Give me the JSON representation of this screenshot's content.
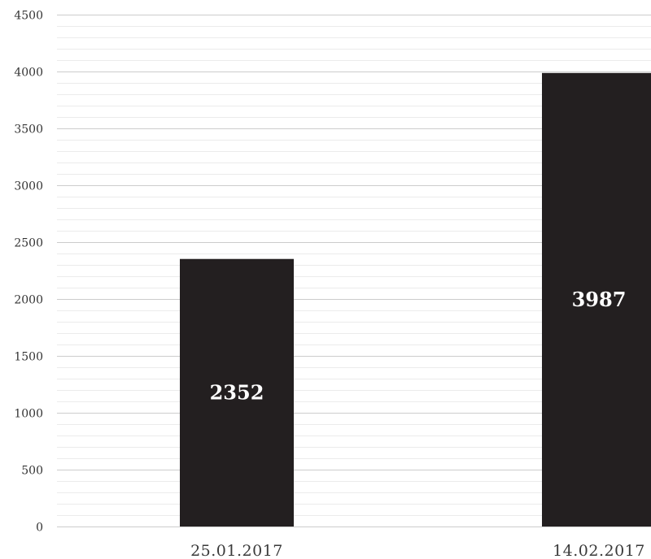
{
  "chart_data": {
    "type": "bar",
    "title": "",
    "xlabel": "",
    "ylabel": "",
    "categories": [
      "25.01.2017",
      "14.02.2017"
    ],
    "values": [
      2352,
      3987
    ],
    "data_labels": [
      "2352",
      "3987"
    ],
    "ylim": [
      0,
      4500
    ],
    "yticks": [
      0,
      500,
      1000,
      1500,
      2000,
      2500,
      3000,
      3500,
      4000,
      4500
    ],
    "ytick_labels": [
      "0",
      "500",
      "1000",
      "1500",
      "2000",
      "2500",
      "3000",
      "3500",
      "4000",
      "4500"
    ],
    "minor_gridlines_per_major": 5,
    "grid": true,
    "legend": "none",
    "bar_color": "#231f20",
    "grid_color": "#cccccc",
    "minor_grid_color": "#ebebeb",
    "label_color": "#ffffff"
  }
}
